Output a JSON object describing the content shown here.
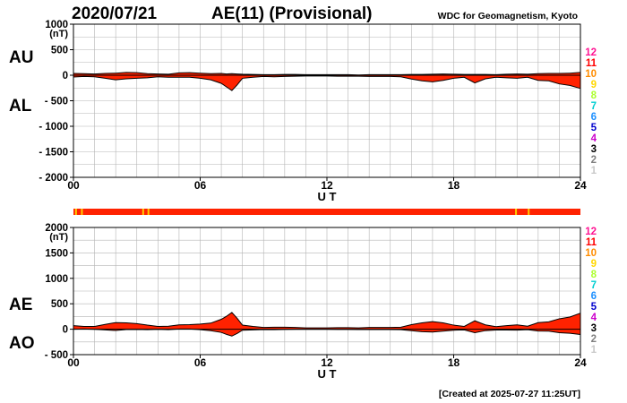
{
  "header": {
    "date": "2020/07/21",
    "title": "AE(11) (Provisional)",
    "source": "WDC for Geomagnetism, Kyoto"
  },
  "footer": {
    "created": "[Created at 2025-07-27 11:25UT]"
  },
  "colors": {
    "fill": "#ff2200",
    "line": "#000000",
    "grid": "#b4b4b4",
    "band": "#ff2200",
    "band_mark": "#ffcc00"
  },
  "legend_numbers": [
    {
      "label": "12",
      "color": "#ff1493"
    },
    {
      "label": "11",
      "color": "#ff0000"
    },
    {
      "label": "10",
      "color": "#ff8c00"
    },
    {
      "label": "9",
      "color": "#ffd700"
    },
    {
      "label": "8",
      "color": "#adff2f"
    },
    {
      "label": "7",
      "color": "#00ced1"
    },
    {
      "label": "6",
      "color": "#1e90ff"
    },
    {
      "label": "5",
      "color": "#0000cd"
    },
    {
      "label": "4",
      "color": "#cc00cc"
    },
    {
      "label": "3",
      "color": "#000000"
    },
    {
      "label": "2",
      "color": "#808080"
    },
    {
      "label": "1",
      "color": "#c8c8c8"
    }
  ],
  "station_band": {
    "marks_ut": [
      0.12,
      0.4,
      3.3,
      3.55,
      20.95,
      21.55
    ]
  },
  "chart_data": [
    {
      "type": "area",
      "unit_label": "(nT)",
      "xlabel": "U T",
      "x_ticks": [
        "00",
        "06",
        "12",
        "18",
        "24"
      ],
      "xlim": [
        0,
        24
      ],
      "ylim": [
        -2000,
        1000
      ],
      "y_ticks": [
        {
          "v": 1000,
          "label": "1000"
        },
        {
          "v": 500,
          "label": "500"
        },
        {
          "v": 0,
          "label": "0"
        },
        {
          "v": -500,
          "label": "- 500"
        },
        {
          "v": -1000,
          "label": "- 1000"
        },
        {
          "v": -1500,
          "label": "- 1500"
        },
        {
          "v": -2000,
          "label": "- 2000"
        }
      ],
      "upper_label": "AU",
      "lower_label": "AL",
      "x_ut": [
        0,
        0.5,
        1,
        1.5,
        2,
        2.5,
        3,
        3.5,
        4,
        4.5,
        5,
        5.5,
        6,
        6.5,
        7,
        7.25,
        7.5,
        7.75,
        8,
        8.5,
        9,
        9.5,
        10,
        10.5,
        11,
        11.5,
        12,
        12.5,
        13,
        13.5,
        14,
        14.5,
        15,
        15.5,
        16,
        16.5,
        17,
        17.5,
        18,
        18.5,
        19,
        19.5,
        20,
        20.5,
        21,
        21.5,
        22,
        22.5,
        23,
        23.5,
        24
      ],
      "upper": [
        35,
        30,
        25,
        35,
        40,
        55,
        50,
        30,
        25,
        20,
        45,
        50,
        40,
        30,
        35,
        25,
        30,
        25,
        20,
        15,
        10,
        10,
        15,
        15,
        10,
        10,
        10,
        10,
        10,
        5,
        10,
        10,
        10,
        10,
        15,
        15,
        20,
        25,
        20,
        15,
        15,
        15,
        10,
        20,
        25,
        20,
        30,
        35,
        35,
        40,
        55
      ],
      "lower": [
        -35,
        -25,
        -30,
        -60,
        -90,
        -70,
        -60,
        -50,
        -30,
        -40,
        -40,
        -40,
        -60,
        -90,
        -160,
        -230,
        -300,
        -190,
        -60,
        -40,
        -25,
        -30,
        -25,
        -20,
        -15,
        -15,
        -15,
        -20,
        -20,
        -20,
        -25,
        -25,
        -25,
        -30,
        -75,
        -110,
        -130,
        -100,
        -60,
        -40,
        -150,
        -70,
        -40,
        -50,
        -60,
        -40,
        -100,
        -110,
        -170,
        -200,
        -260
      ]
    },
    {
      "type": "area",
      "unit_label": "(nT)",
      "xlabel": "U T",
      "x_ticks": [
        "00",
        "06",
        "12",
        "18",
        "24"
      ],
      "xlim": [
        0,
        24
      ],
      "ylim": [
        -500,
        2000
      ],
      "y_ticks": [
        {
          "v": 2000,
          "label": "2000"
        },
        {
          "v": 1500,
          "label": "1500"
        },
        {
          "v": 1000,
          "label": "1000"
        },
        {
          "v": 500,
          "label": "500"
        },
        {
          "v": 0,
          "label": "0"
        },
        {
          "v": -500,
          "label": "- 500"
        }
      ],
      "upper_label": "AE",
      "lower_label": "AO",
      "x_ut": [
        0,
        0.5,
        1,
        1.5,
        2,
        2.5,
        3,
        3.5,
        4,
        4.5,
        5,
        5.5,
        6,
        6.5,
        7,
        7.25,
        7.5,
        7.75,
        8,
        8.5,
        9,
        9.5,
        10,
        10.5,
        11,
        11.5,
        12,
        12.5,
        13,
        13.5,
        14,
        14.5,
        15,
        15.5,
        16,
        16.5,
        17,
        17.5,
        18,
        18.5,
        19,
        19.5,
        20,
        20.5,
        21,
        21.5,
        22,
        22.5,
        23,
        23.5,
        24
      ],
      "upper": [
        70,
        55,
        55,
        95,
        130,
        125,
        110,
        80,
        55,
        60,
        85,
        90,
        100,
        120,
        195,
        255,
        330,
        215,
        80,
        55,
        35,
        40,
        40,
        35,
        25,
        25,
        25,
        30,
        30,
        25,
        35,
        35,
        35,
        40,
        90,
        125,
        150,
        125,
        80,
        55,
        165,
        85,
        50,
        70,
        85,
        60,
        130,
        145,
        205,
        240,
        315
      ],
      "lower": [
        0,
        3,
        -3,
        -13,
        -25,
        -8,
        -5,
        -10,
        -3,
        -10,
        3,
        5,
        -10,
        -30,
        -63,
        -103,
        -135,
        -83,
        -20,
        -13,
        -8,
        -10,
        -5,
        -3,
        -3,
        -3,
        -3,
        -5,
        -5,
        -8,
        -8,
        -8,
        -8,
        -10,
        -30,
        -48,
        -55,
        -38,
        -20,
        -13,
        -68,
        -28,
        -15,
        -15,
        -18,
        -10,
        -35,
        -38,
        -68,
        -80,
        -103
      ]
    }
  ]
}
